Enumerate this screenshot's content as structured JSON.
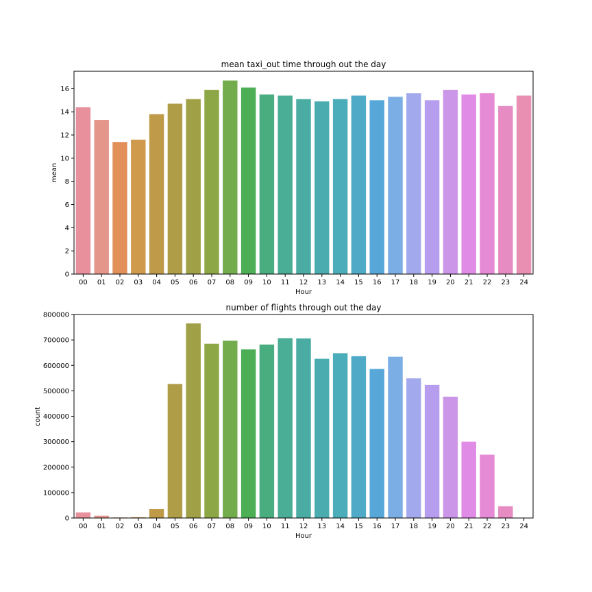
{
  "chart_data": [
    {
      "type": "bar",
      "title": "mean taxi_out time through out the day",
      "xlabel": "Hour",
      "ylabel": "mean",
      "ylim": [
        0,
        17.5
      ],
      "yticks": [
        0,
        2,
        4,
        6,
        8,
        10,
        12,
        14,
        16
      ],
      "ytick_labels": [
        "0",
        "2",
        "4",
        "6",
        "8",
        "10",
        "12",
        "14",
        "16"
      ],
      "grid": false,
      "categories": [
        "00",
        "01",
        "02",
        "03",
        "04",
        "05",
        "06",
        "07",
        "08",
        "09",
        "10",
        "11",
        "12",
        "13",
        "14",
        "15",
        "16",
        "17",
        "18",
        "19",
        "20",
        "21",
        "22",
        "23",
        "24"
      ],
      "values": [
        14.4,
        13.3,
        11.4,
        11.6,
        13.8,
        14.7,
        15.1,
        15.9,
        16.7,
        16.1,
        15.5,
        15.4,
        15.1,
        14.9,
        15.1,
        15.4,
        15.0,
        15.3,
        15.6,
        15.0,
        15.9,
        15.5,
        15.6,
        14.5,
        15.4
      ]
    },
    {
      "type": "bar",
      "title": "number of flights through out the day",
      "xlabel": "Hour",
      "ylabel": "count",
      "ylim": [
        0,
        800000
      ],
      "yticks": [
        0,
        100000,
        200000,
        300000,
        400000,
        500000,
        600000,
        700000,
        800000
      ],
      "ytick_labels": [
        "0",
        "100000",
        "200000",
        "300000",
        "400000",
        "500000",
        "600000",
        "700000",
        "800000"
      ],
      "grid": false,
      "categories": [
        "00",
        "01",
        "02",
        "03",
        "04",
        "05",
        "06",
        "07",
        "08",
        "09",
        "10",
        "11",
        "12",
        "13",
        "14",
        "15",
        "16",
        "17",
        "18",
        "19",
        "20",
        "21",
        "22",
        "23",
        "24"
      ],
      "values": [
        22000,
        9000,
        2000,
        3000,
        35000,
        527000,
        765000,
        685000,
        697000,
        663000,
        682000,
        707000,
        706000,
        626000,
        648000,
        636000,
        586000,
        634000,
        549000,
        523000,
        477000,
        300000,
        249000,
        46000,
        1000
      ]
    }
  ],
  "colors": [
    "#e8909c",
    "#e4968a",
    "#e2905a",
    "#cf9a4c",
    "#bf9a48",
    "#b09d48",
    "#a0a047",
    "#8ea746",
    "#72ac4c",
    "#4cae55",
    "#4aad80",
    "#4aad95",
    "#4aaca3",
    "#4aacae",
    "#4bacba",
    "#4faac8",
    "#57a8d9",
    "#7aaee4",
    "#a3a9ed",
    "#b79dee",
    "#cc96e8",
    "#e08be6",
    "#e58ad5",
    "#e68cc3",
    "#e98fb1"
  ],
  "panels": [
    {
      "name": "mean-chart",
      "left": 108,
      "top": 104,
      "width": 670,
      "height": 296
    },
    {
      "name": "count-chart",
      "left": 108,
      "top": 459,
      "width": 670,
      "height": 297
    }
  ]
}
